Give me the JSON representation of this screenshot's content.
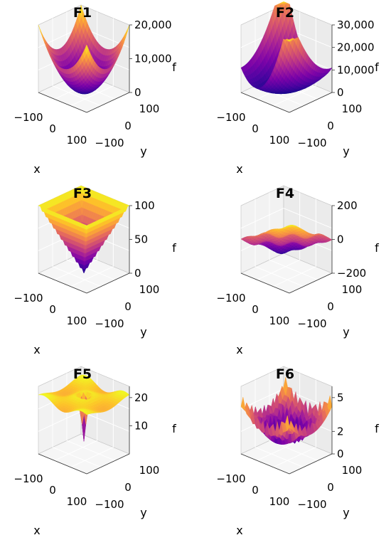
{
  "figure": {
    "panel_titles": [
      "F1",
      "F2",
      "F3",
      "F4",
      "F5",
      "F6"
    ]
  },
  "chart_data": [
    {
      "type": "surface3d",
      "title": "F1",
      "xlabel": "x",
      "ylabel": "y",
      "zlabel": "f",
      "x_ticks": [
        "−100",
        "0",
        "100"
      ],
      "y_ticks": [
        "100",
        "0",
        "−100"
      ],
      "z_ticks": [
        "20,000",
        "10,000",
        "0"
      ],
      "z_tick_values": [
        20000,
        10000,
        0
      ],
      "xlim": [
        -100,
        100
      ],
      "ylim": [
        -100,
        100
      ],
      "zlim": [
        0,
        20000
      ],
      "colormap": "plasma",
      "surface": "f = x^2 + y^2"
    },
    {
      "type": "surface3d",
      "title": "F2",
      "xlabel": "x",
      "ylabel": "y",
      "zlabel": "f",
      "x_ticks": [
        "−100",
        "0",
        "100"
      ],
      "y_ticks": [
        "100",
        "0",
        "−100"
      ],
      "z_ticks": [
        "30,000",
        "20,000",
        "10,000",
        "0"
      ],
      "z_tick_values": [
        30000,
        20000,
        10000,
        0
      ],
      "xlim": [
        -100,
        100
      ],
      "ylim": [
        -100,
        100
      ],
      "zlim": [
        0,
        30000
      ],
      "colormap": "plasma",
      "surface": "f = x^2 + (x + y)^2"
    },
    {
      "type": "surface3d",
      "title": "F3",
      "xlabel": "x",
      "ylabel": "y",
      "zlabel": "f",
      "x_ticks": [
        "−100",
        "0",
        "100"
      ],
      "y_ticks": [
        "100",
        "0",
        "−100"
      ],
      "z_ticks": [
        "100",
        "50",
        "0"
      ],
      "z_tick_values": [
        100,
        50,
        0
      ],
      "xlim": [
        -100,
        100
      ],
      "ylim": [
        -100,
        100
      ],
      "zlim": [
        0,
        100
      ],
      "colormap": "plasma",
      "surface": "f = max(|x|, |y|)"
    },
    {
      "type": "surface3d",
      "title": "F4",
      "xlabel": "x",
      "ylabel": "y",
      "zlabel": "f",
      "x_ticks": [
        "−100",
        "0",
        "100"
      ],
      "y_ticks": [
        "100",
        "0",
        "−100"
      ],
      "z_ticks": [
        "200",
        "0",
        "−200"
      ],
      "z_tick_values": [
        200,
        0,
        -200
      ],
      "xlim": [
        -100,
        100
      ],
      "ylim": [
        -100,
        100
      ],
      "zlim": [
        -200,
        200
      ],
      "colormap": "plasma",
      "surface": "tilted wavy plane, f ≈ x + y"
    },
    {
      "type": "surface3d",
      "title": "F5",
      "xlabel": "x",
      "ylabel": "y",
      "zlabel": "f",
      "x_ticks": [
        "−100",
        "0",
        "100"
      ],
      "y_ticks": [
        "100",
        "0",
        "−100"
      ],
      "z_ticks": [
        "20",
        "10"
      ],
      "z_tick_values": [
        20,
        10
      ],
      "xlim": [
        -100,
        100
      ],
      "ylim": [
        -100,
        100
      ],
      "zlim": [
        0,
        24
      ],
      "colormap": "plasma",
      "surface": "flat plateau near 20 with a narrow deep well at the origin"
    },
    {
      "type": "surface3d",
      "title": "F6",
      "xlabel": "x",
      "ylabel": "y",
      "zlabel": "f",
      "x_ticks": [
        "−100",
        "0",
        "100"
      ],
      "y_ticks": [
        "100",
        "0",
        "−100"
      ],
      "z_ticks": [
        "5",
        "2",
        "0"
      ],
      "z_tick_values": [
        5,
        2,
        0
      ],
      "xlim": [
        -100,
        100
      ],
      "ylim": [
        -100,
        100
      ],
      "zlim": [
        0,
        6
      ],
      "colormap": "plasma",
      "surface": "highly oscillating multimodal bowl"
    }
  ]
}
